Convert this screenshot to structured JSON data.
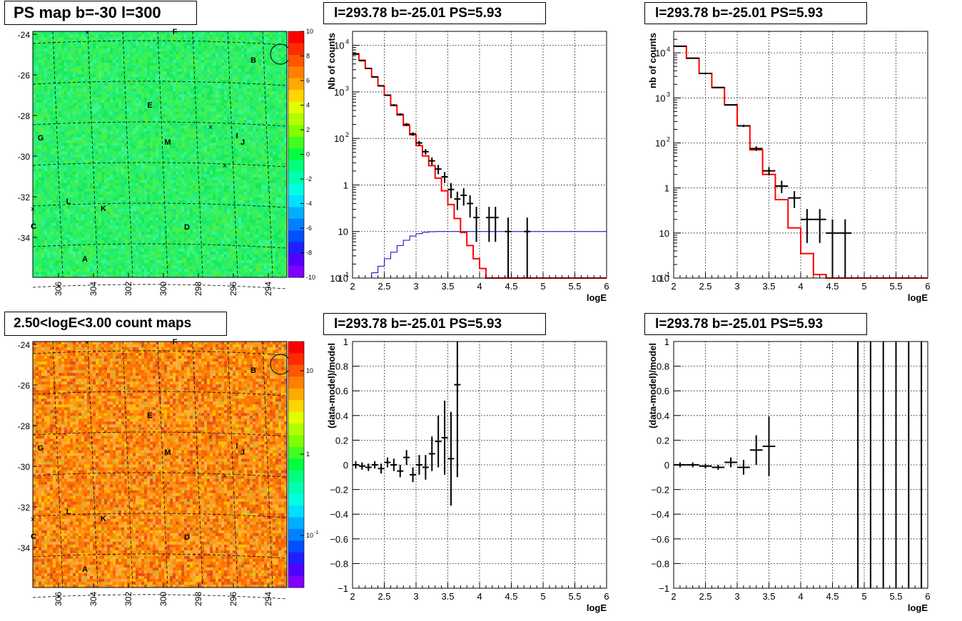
{
  "titles": {
    "map_top": "PS map b=-30 l=300",
    "map_bottom": "2.50<logE<3.00 count maps",
    "spec_left": "l=293.78 b=-25.01 PS=5.93",
    "spec_right": "l=293.78 b=-25.01 PS=5.93",
    "res_left": "l=293.78 b=-25.01 PS=5.93",
    "res_right": "l=293.78 b=-25.01 PS=5.93"
  },
  "colors": {
    "data": "#000000",
    "model": "#ff0000",
    "model_secondary": "#0000cc",
    "grid": "#000000"
  },
  "chart_data": [
    {
      "id": "ps_map",
      "type": "heatmap",
      "title": "PS map b=-30 l=300",
      "x_ticks": [
        "306",
        "304",
        "302",
        "300",
        "298",
        "296",
        "294"
      ],
      "y_ticks": [
        "-24",
        "-26",
        "-28",
        "-30",
        "-32",
        "-34"
      ],
      "colorbar_ticks": [
        "10",
        "8",
        "6",
        "4",
        "2",
        "0",
        "-2",
        "-4",
        "-6",
        "-8",
        "-10"
      ],
      "source_labels": [
        "A",
        "B",
        "C",
        "D",
        "E",
        "F",
        "G",
        "I",
        "J",
        "K",
        "L",
        "M"
      ]
    },
    {
      "id": "spectrum_left",
      "type": "line",
      "title": "l=293.78 b=-25.01 PS=5.93",
      "xlabel": "logE",
      "ylabel": "Nb of counts",
      "xlim": [
        2,
        6
      ],
      "ylim": [
        0.1,
        20000
      ],
      "ylog": true,
      "x_ticks": [
        "2",
        "2.5",
        "3",
        "3.5",
        "4",
        "4.5",
        "5",
        "5.5",
        "6"
      ],
      "y_ticks": [
        "10",
        "10",
        "10",
        "1",
        "10",
        "10",
        "10"
      ],
      "y_tick_exp": [
        "4",
        "3",
        "2",
        "",
        "",
        "",
        "-1"
      ],
      "data_points": [
        {
          "x": 2.05,
          "y": 6500,
          "ex": 0.05,
          "elo": 6400,
          "ehi": 6600
        },
        {
          "x": 2.15,
          "y": 4700,
          "ex": 0.05,
          "elo": 4600,
          "ehi": 4800
        },
        {
          "x": 2.25,
          "y": 3200,
          "ex": 0.05,
          "elo": 3140,
          "ehi": 3260
        },
        {
          "x": 2.35,
          "y": 2100,
          "ex": 0.05,
          "elo": 2050,
          "ehi": 2150
        },
        {
          "x": 2.45,
          "y": 1350,
          "ex": 0.05,
          "elo": 1310,
          "ehi": 1390
        },
        {
          "x": 2.55,
          "y": 850,
          "ex": 0.05,
          "elo": 820,
          "ehi": 880
        },
        {
          "x": 2.65,
          "y": 520,
          "ex": 0.05,
          "elo": 500,
          "ehi": 545
        },
        {
          "x": 2.75,
          "y": 330,
          "ex": 0.05,
          "elo": 312,
          "ehi": 348
        },
        {
          "x": 2.85,
          "y": 200,
          "ex": 0.05,
          "elo": 186,
          "ehi": 214
        },
        {
          "x": 2.95,
          "y": 125,
          "ex": 0.05,
          "elo": 114,
          "ehi": 136
        },
        {
          "x": 3.05,
          "y": 80,
          "ex": 0.05,
          "elo": 71,
          "ehi": 89
        },
        {
          "x": 3.15,
          "y": 52,
          "ex": 0.05,
          "elo": 45,
          "ehi": 59
        },
        {
          "x": 3.25,
          "y": 33,
          "ex": 0.05,
          "elo": 27,
          "ehi": 39
        },
        {
          "x": 3.35,
          "y": 22,
          "ex": 0.05,
          "elo": 17,
          "ehi": 27
        },
        {
          "x": 3.45,
          "y": 15,
          "ex": 0.05,
          "elo": 11,
          "ehi": 19
        },
        {
          "x": 3.55,
          "y": 8,
          "ex": 0.05,
          "elo": 5.2,
          "ehi": 11
        },
        {
          "x": 3.65,
          "y": 5,
          "ex": 0.05,
          "elo": 2.9,
          "ehi": 7.2
        },
        {
          "x": 3.75,
          "y": 6,
          "ex": 0.05,
          "elo": 3.6,
          "ehi": 8.5
        },
        {
          "x": 3.85,
          "y": 4,
          "ex": 0.05,
          "elo": 2.0,
          "ehi": 6.0
        },
        {
          "x": 3.95,
          "y": 2,
          "ex": 0.05,
          "elo": 0.6,
          "ehi": 3.4
        },
        {
          "x": 4.15,
          "y": 2,
          "ex": 0.05,
          "elo": 0.6,
          "ehi": 3.4
        },
        {
          "x": 4.25,
          "y": 2,
          "ex": 0.05,
          "elo": 0.6,
          "ehi": 3.4
        },
        {
          "x": 4.45,
          "y": 1,
          "ex": 0.05,
          "elo": 0.1,
          "ehi": 2.0
        },
        {
          "x": 4.75,
          "y": 1,
          "ex": 0.05,
          "elo": 0.1,
          "ehi": 2.0
        }
      ],
      "model_steps": {
        "edges": [
          2.0,
          2.1,
          2.2,
          2.3,
          2.4,
          2.5,
          2.6,
          2.7,
          2.8,
          2.9,
          3.0,
          3.1,
          3.2,
          3.3,
          3.4,
          3.5,
          3.6,
          3.7,
          3.8,
          3.9,
          4.0,
          4.1,
          4.2,
          6.0
        ],
        "values": [
          6600,
          4800,
          3200,
          2100,
          1350,
          850,
          510,
          320,
          190,
          120,
          70,
          42,
          26,
          14,
          7.5,
          3.8,
          1.9,
          0.95,
          0.5,
          0.26,
          0.16,
          0.1,
          0.1
        ]
      },
      "model2_steps": {
        "edges": [
          2.0,
          2.1,
          2.2,
          2.3,
          2.4,
          2.5,
          2.6,
          2.7,
          2.8,
          2.9,
          3.0,
          3.1,
          3.2,
          3.3,
          6.0
        ],
        "values": [
          0.1,
          0.1,
          0.1,
          0.13,
          0.18,
          0.26,
          0.36,
          0.5,
          0.65,
          0.8,
          0.9,
          0.96,
          0.99,
          1.0
        ]
      }
    },
    {
      "id": "spectrum_right",
      "type": "line",
      "title": "l=293.78 b=-25.01 PS=5.93",
      "xlabel": "logE",
      "ylabel": "nb of counts",
      "xlim": [
        2,
        6
      ],
      "ylim": [
        0.1,
        30000
      ],
      "ylog": true,
      "x_ticks": [
        "2",
        "2.5",
        "3",
        "3.5",
        "4",
        "4.5",
        "5",
        "5.5",
        "6"
      ],
      "y_ticks": [
        "10",
        "10",
        "10",
        "1",
        "10",
        "10",
        "10"
      ],
      "y_tick_exp": [
        "4",
        "3",
        "2",
        "",
        "",
        "",
        "-1"
      ],
      "data_points": [
        {
          "x": 2.1,
          "y": 14000,
          "ex": 0.1,
          "elo": 13800,
          "ehi": 14200
        },
        {
          "x": 2.3,
          "y": 7600,
          "ex": 0.1,
          "elo": 7500,
          "ehi": 7700
        },
        {
          "x": 2.5,
          "y": 3500,
          "ex": 0.1,
          "elo": 3440,
          "ehi": 3560
        },
        {
          "x": 2.7,
          "y": 1700,
          "ex": 0.1,
          "elo": 1660,
          "ehi": 1740
        },
        {
          "x": 2.9,
          "y": 700,
          "ex": 0.1,
          "elo": 675,
          "ehi": 725
        },
        {
          "x": 3.1,
          "y": 240,
          "ex": 0.1,
          "elo": 225,
          "ehi": 255
        },
        {
          "x": 3.3,
          "y": 75,
          "ex": 0.1,
          "elo": 67,
          "ehi": 84
        },
        {
          "x": 3.5,
          "y": 24,
          "ex": 0.1,
          "elo": 19,
          "ehi": 29
        },
        {
          "x": 3.7,
          "y": 11,
          "ex": 0.1,
          "elo": 7.7,
          "ehi": 14.5
        },
        {
          "x": 3.9,
          "y": 6,
          "ex": 0.1,
          "elo": 3.6,
          "ehi": 8.5
        },
        {
          "x": 4.1,
          "y": 2,
          "ex": 0.1,
          "elo": 0.6,
          "ehi": 3.4
        },
        {
          "x": 4.3,
          "y": 2,
          "ex": 0.1,
          "elo": 0.6,
          "ehi": 3.4
        },
        {
          "x": 4.5,
          "y": 1,
          "ex": 0.1,
          "elo": 0.1,
          "ehi": 2.0
        },
        {
          "x": 4.7,
          "y": 1,
          "ex": 0.1,
          "elo": 0.1,
          "ehi": 2.0
        }
      ],
      "model_steps": {
        "edges": [
          2.0,
          2.2,
          2.4,
          2.6,
          2.8,
          3.0,
          3.2,
          3.4,
          3.6,
          3.8,
          4.0,
          4.2,
          4.4,
          6.0
        ],
        "values": [
          14000,
          7600,
          3500,
          1700,
          700,
          240,
          70,
          20,
          5.5,
          1.3,
          0.35,
          0.12,
          0.1
        ]
      }
    },
    {
      "id": "count_map",
      "type": "heatmap",
      "title": "2.50<logE<3.00 count maps",
      "x_ticks": [
        "306",
        "304",
        "302",
        "300",
        "298",
        "296",
        "294"
      ],
      "y_ticks": [
        "-24",
        "-26",
        "-28",
        "-30",
        "-32",
        "-34"
      ],
      "colorbar_ticks": [
        "10",
        "1",
        "10"
      ],
      "colorbar_tick_exp": [
        "",
        "",
        "-1"
      ],
      "source_labels": [
        "A",
        "B",
        "C",
        "D",
        "E",
        "F",
        "G",
        "I",
        "J",
        "K",
        "L",
        "M"
      ]
    },
    {
      "id": "residual_left",
      "type": "scatter",
      "title": "l=293.78 b=-25.01 PS=5.93",
      "xlabel": "logE",
      "ylabel": "(data-model)/model",
      "xlim": [
        2,
        6
      ],
      "ylim": [
        -1,
        1
      ],
      "x_ticks": [
        "2",
        "2.5",
        "3",
        "3.5",
        "4",
        "4.5",
        "5",
        "5.5",
        "6"
      ],
      "y_ticks": [
        "1",
        "0.8",
        "0.6",
        "0.4",
        "0.2",
        "0",
        "−0.2",
        "−0.4",
        "−0.6",
        "−0.8",
        "−1"
      ],
      "data_points": [
        {
          "x": 2.05,
          "y": 0.0,
          "ex": 0.05,
          "elo": -0.03,
          "ehi": 0.03
        },
        {
          "x": 2.15,
          "y": -0.01,
          "ex": 0.05,
          "elo": -0.04,
          "ehi": 0.02
        },
        {
          "x": 2.25,
          "y": -0.02,
          "ex": 0.05,
          "elo": -0.05,
          "ehi": 0.01
        },
        {
          "x": 2.35,
          "y": 0.0,
          "ex": 0.05,
          "elo": -0.03,
          "ehi": 0.03
        },
        {
          "x": 2.45,
          "y": -0.03,
          "ex": 0.05,
          "elo": -0.07,
          "ehi": 0.01
        },
        {
          "x": 2.55,
          "y": 0.02,
          "ex": 0.05,
          "elo": -0.02,
          "ehi": 0.06
        },
        {
          "x": 2.65,
          "y": 0.0,
          "ex": 0.05,
          "elo": -0.05,
          "ehi": 0.05
        },
        {
          "x": 2.75,
          "y": -0.05,
          "ex": 0.05,
          "elo": -0.1,
          "ehi": 0.0
        },
        {
          "x": 2.85,
          "y": 0.06,
          "ex": 0.05,
          "elo": 0.0,
          "ehi": 0.12
        },
        {
          "x": 2.95,
          "y": -0.08,
          "ex": 0.05,
          "elo": -0.14,
          "ehi": -0.02
        },
        {
          "x": 3.05,
          "y": 0.0,
          "ex": 0.05,
          "elo": -0.08,
          "ehi": 0.08
        },
        {
          "x": 3.15,
          "y": -0.02,
          "ex": 0.05,
          "elo": -0.12,
          "ehi": 0.08
        },
        {
          "x": 3.25,
          "y": 0.09,
          "ex": 0.05,
          "elo": -0.05,
          "ehi": 0.23
        },
        {
          "x": 3.35,
          "y": 0.19,
          "ex": 0.05,
          "elo": -0.02,
          "ehi": 0.4
        },
        {
          "x": 3.45,
          "y": 0.22,
          "ex": 0.05,
          "elo": -0.08,
          "ehi": 0.52
        },
        {
          "x": 3.55,
          "y": 0.05,
          "ex": 0.05,
          "elo": -0.33,
          "ehi": 0.43
        },
        {
          "x": 3.65,
          "y": 0.65,
          "ex": 0.05,
          "elo": -0.1,
          "ehi": 1.0
        }
      ]
    },
    {
      "id": "residual_right",
      "type": "scatter",
      "title": "l=293.78 b=-25.01 PS=5.93",
      "xlabel": "logE",
      "ylabel": "(data-model)/model",
      "xlim": [
        2,
        6
      ],
      "ylim": [
        -1,
        1
      ],
      "x_ticks": [
        "2",
        "2.5",
        "3",
        "3.5",
        "4",
        "4.5",
        "5",
        "5.5",
        "6"
      ],
      "y_ticks": [
        "1",
        "0.8",
        "0.6",
        "0.4",
        "0.2",
        "0",
        "−0.2",
        "−0.4",
        "−0.6",
        "−0.8",
        "−1"
      ],
      "data_points": [
        {
          "x": 2.1,
          "y": 0.0,
          "ex": 0.1,
          "elo": -0.02,
          "ehi": 0.02
        },
        {
          "x": 2.3,
          "y": 0.0,
          "ex": 0.1,
          "elo": -0.02,
          "ehi": 0.02
        },
        {
          "x": 2.5,
          "y": -0.01,
          "ex": 0.1,
          "elo": -0.03,
          "ehi": 0.01
        },
        {
          "x": 2.7,
          "y": -0.02,
          "ex": 0.1,
          "elo": -0.04,
          "ehi": 0.0
        },
        {
          "x": 2.9,
          "y": 0.02,
          "ex": 0.1,
          "elo": -0.02,
          "ehi": 0.06
        },
        {
          "x": 3.1,
          "y": -0.02,
          "ex": 0.1,
          "elo": -0.08,
          "ehi": 0.04
        },
        {
          "x": 3.3,
          "y": 0.12,
          "ex": 0.1,
          "elo": 0.0,
          "ehi": 0.24
        },
        {
          "x": 3.5,
          "y": 0.15,
          "ex": 0.1,
          "elo": -0.09,
          "ehi": 0.39
        },
        {
          "x": 4.9,
          "y": 0.0,
          "ex": 0.0,
          "elo": -1.0,
          "ehi": 1.0
        },
        {
          "x": 5.1,
          "y": 0.0,
          "ex": 0.0,
          "elo": -1.0,
          "ehi": 1.0
        },
        {
          "x": 5.3,
          "y": 0.0,
          "ex": 0.0,
          "elo": -1.0,
          "ehi": 1.0
        },
        {
          "x": 5.5,
          "y": 0.0,
          "ex": 0.0,
          "elo": -1.0,
          "ehi": 1.0
        },
        {
          "x": 5.7,
          "y": 0.0,
          "ex": 0.0,
          "elo": -1.0,
          "ehi": 1.0
        },
        {
          "x": 5.9,
          "y": 0.0,
          "ex": 0.0,
          "elo": -1.0,
          "ehi": 1.0
        }
      ]
    }
  ]
}
